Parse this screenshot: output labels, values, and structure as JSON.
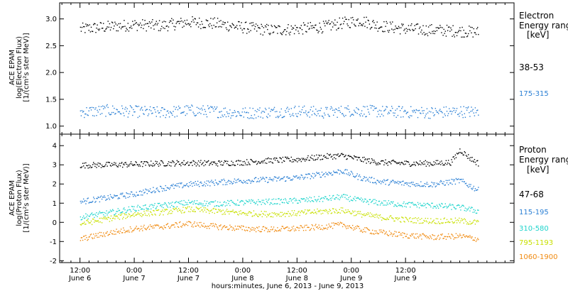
{
  "chart_data": [
    {
      "panel": "electron",
      "type": "scatter",
      "ylabel_lines": [
        "ACE EPAM",
        "log(Electron Flux)",
        "[1/(cm²s ster MeV)]"
      ],
      "ylim": [
        0.85,
        3.3
      ],
      "yticks": [
        1.0,
        1.5,
        2.0,
        2.5,
        3.0
      ],
      "ytick_labels": [
        "1.0",
        "1.5",
        "2.0",
        "2.5",
        "3.0"
      ],
      "legend_header": [
        "Electron",
        "Energy range",
        "[keV]"
      ],
      "series": [
        {
          "name": "38-53",
          "color": "#000000",
          "t": [
            0,
            6,
            12,
            18,
            24,
            30,
            36,
            42,
            48,
            54,
            58,
            62,
            66,
            72,
            78,
            84,
            88
          ],
          "values": [
            2.82,
            2.86,
            2.9,
            2.88,
            2.95,
            2.92,
            2.85,
            2.8,
            2.82,
            2.86,
            2.93,
            2.98,
            2.88,
            2.82,
            2.8,
            2.78,
            2.76
          ]
        },
        {
          "name": "175-315",
          "color": "#2a7fd4",
          "t": [
            0,
            6,
            12,
            18,
            24,
            30,
            36,
            42,
            48,
            54,
            60,
            66,
            72,
            78,
            84,
            88
          ],
          "values": [
            1.27,
            1.3,
            1.28,
            1.26,
            1.3,
            1.28,
            1.25,
            1.27,
            1.29,
            1.26,
            1.3,
            1.28,
            1.27,
            1.26,
            1.28,
            1.27
          ]
        }
      ]
    },
    {
      "panel": "proton",
      "type": "scatter",
      "ylabel_lines": [
        "ACE EPAM",
        "log(Proton Flux)",
        "[1/(cm²s ster MeV)]"
      ],
      "ylim": [
        -2.1,
        4.6
      ],
      "yticks": [
        -2,
        -1,
        0,
        1,
        2,
        3,
        4
      ],
      "ytick_labels": [
        "-2",
        "-1",
        "0",
        "1",
        "2",
        "3",
        "4"
      ],
      "legend_header": [
        "Proton",
        "Energy range",
        "[keV]"
      ],
      "series": [
        {
          "name": "47-68",
          "color": "#000000",
          "t": [
            0,
            6,
            12,
            18,
            24,
            30,
            36,
            42,
            48,
            54,
            58,
            62,
            66,
            72,
            78,
            82,
            84,
            86,
            88
          ],
          "values": [
            3.0,
            3.02,
            3.05,
            3.1,
            3.12,
            3.1,
            3.15,
            3.25,
            3.3,
            3.45,
            3.5,
            3.3,
            3.15,
            3.1,
            3.1,
            3.15,
            3.8,
            3.4,
            3.1
          ]
        },
        {
          "name": "115-195",
          "color": "#2a7fd4",
          "t": [
            0,
            6,
            12,
            18,
            24,
            30,
            36,
            42,
            48,
            54,
            58,
            62,
            66,
            72,
            78,
            84,
            88
          ],
          "values": [
            1.1,
            1.3,
            1.5,
            1.8,
            2.0,
            2.1,
            2.2,
            2.25,
            2.35,
            2.55,
            2.7,
            2.35,
            2.15,
            2.05,
            2.0,
            2.2,
            1.7
          ]
        },
        {
          "name": "310-580",
          "color": "#1fd4cc",
          "t": [
            0,
            6,
            12,
            18,
            24,
            30,
            36,
            42,
            48,
            54,
            58,
            62,
            66,
            72,
            78,
            84,
            88
          ],
          "values": [
            0.3,
            0.5,
            0.75,
            0.9,
            1.05,
            1.0,
            1.05,
            1.1,
            1.15,
            1.25,
            1.35,
            1.15,
            1.05,
            0.95,
            0.9,
            0.8,
            0.6
          ]
        },
        {
          "name": "795-1193",
          "color": "#c8e000",
          "t": [
            0,
            6,
            12,
            18,
            24,
            30,
            36,
            42,
            48,
            54,
            58,
            62,
            66,
            72,
            78,
            84,
            88
          ],
          "values": [
            -0.05,
            0.2,
            0.45,
            0.55,
            0.7,
            0.6,
            0.5,
            0.45,
            0.5,
            0.6,
            0.65,
            0.45,
            0.3,
            0.15,
            0.1,
            0.1,
            0.0
          ]
        },
        {
          "name": "1060-1900",
          "color": "#f08a10",
          "t": [
            0,
            6,
            12,
            18,
            24,
            30,
            36,
            42,
            48,
            54,
            58,
            62,
            66,
            72,
            78,
            84,
            88
          ],
          "values": [
            -0.85,
            -0.55,
            -0.3,
            -0.2,
            -0.05,
            -0.2,
            -0.3,
            -0.35,
            -0.3,
            -0.2,
            -0.1,
            -0.35,
            -0.5,
            -0.65,
            -0.75,
            -0.7,
            -0.85
          ]
        }
      ]
    }
  ],
  "x_axis": {
    "xlim_hours": [
      -4.5,
      96
    ],
    "ticks": [
      {
        "h": 0,
        "time": "12:00",
        "date": "June 6"
      },
      {
        "h": 12,
        "time": "0:00",
        "date": "June 7"
      },
      {
        "h": 24,
        "time": "12:00",
        "date": "June 7"
      },
      {
        "h": 36,
        "time": "0:00",
        "date": "June 8"
      },
      {
        "h": 48,
        "time": "12:00",
        "date": "June 8"
      },
      {
        "h": 60,
        "time": "0:00",
        "date": "June 9"
      },
      {
        "h": 72,
        "time": "12:00",
        "date": "June 9"
      }
    ],
    "minor_step_hours": 2,
    "xlabel": "hours:minutes, June  6, 2013 - June  9, 2013"
  }
}
